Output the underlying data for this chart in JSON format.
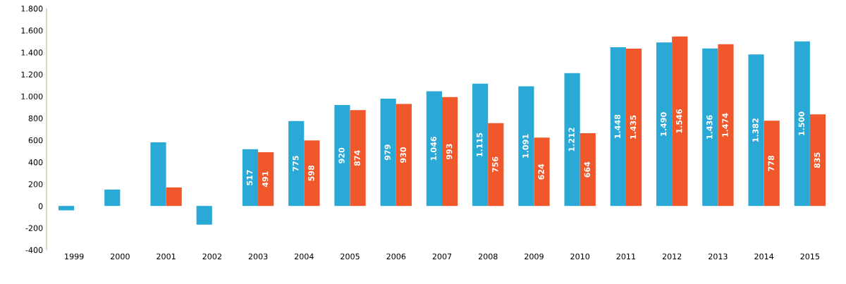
{
  "chart_data": {
    "type": "bar",
    "categories": [
      "1999",
      "2000",
      "2001",
      "2002",
      "2003",
      "2004",
      "2005",
      "2006",
      "2007",
      "2008",
      "2009",
      "2010",
      "2011",
      "2012",
      "2013",
      "2014",
      "2015"
    ],
    "series": [
      {
        "color": "#2aa9d6",
        "values": [
          -40,
          150,
          580,
          -170,
          517,
          775,
          920,
          979,
          1046,
          1115,
          1091,
          1212,
          1448,
          1490,
          1436,
          1382,
          1500
        ],
        "value_labels": [
          null,
          null,
          null,
          null,
          "517",
          "775",
          "920",
          "979",
          "1.046",
          "1.115",
          "1.091",
          "1.212",
          "1.448",
          "1.490",
          "1.436",
          "1.382",
          "1.500"
        ]
      },
      {
        "color": "#f0572a",
        "values": [
          null,
          null,
          170,
          null,
          491,
          598,
          874,
          930,
          993,
          756,
          624,
          664,
          1435,
          1546,
          1474,
          778,
          835
        ],
        "value_labels": [
          null,
          null,
          null,
          null,
          "491",
          "598",
          "874",
          "930",
          "993",
          "756",
          "624",
          "664",
          "1.435",
          "1.546",
          "1.474",
          "778",
          "835"
        ]
      }
    ],
    "ylim": [
      -400,
      1800
    ],
    "yticks": [
      -400,
      -200,
      0,
      200,
      400,
      600,
      800,
      {
        "value": 1000,
        "label": "1.000"
      },
      {
        "value": 1200,
        "label": "1.200"
      },
      {
        "value": 1400,
        "label": "1.400"
      },
      {
        "value": 1600,
        "label": "1.600"
      },
      {
        "value": 1800,
        "label": "1.800"
      }
    ],
    "grid": false,
    "legend": false
  }
}
